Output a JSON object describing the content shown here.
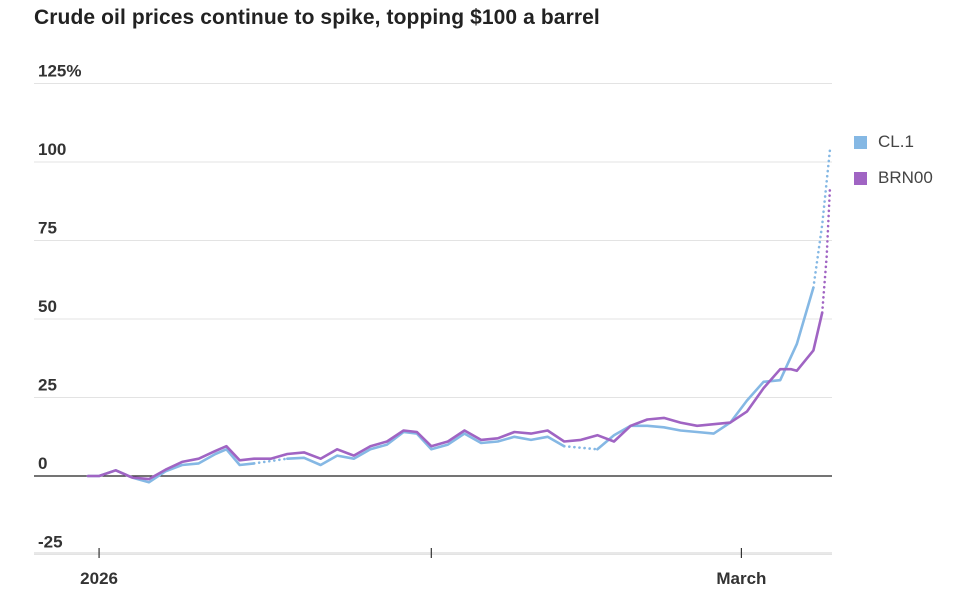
{
  "title": "Crude oil prices continue to spike, topping $100 a barrel",
  "chart_data": {
    "type": "line",
    "ylim": [
      -25,
      125
    ],
    "y_ticks": [
      -25,
      0,
      25,
      50,
      75,
      100,
      125
    ],
    "y_tick_labels": [
      "-25",
      "0",
      "25",
      "50",
      "75",
      "100",
      "125%"
    ],
    "x_ticks": [
      {
        "x": 0,
        "label": "2026"
      },
      {
        "x": 30,
        "label": ""
      },
      {
        "x": 58,
        "label": "March"
      }
    ],
    "xlim": [
      -1,
      66
    ],
    "grid": true,
    "legend": "right",
    "series": [
      {
        "name": "CL.1",
        "color": "#85b8e4",
        "solid": [
          [
            -1,
            0
          ],
          [
            0,
            0
          ],
          [
            1.5,
            1.8
          ],
          [
            3,
            -0.5
          ],
          [
            4.5,
            -2
          ],
          [
            6,
            1.5
          ],
          [
            7.5,
            3.5
          ],
          [
            9,
            4
          ],
          [
            10.5,
            7
          ],
          [
            11.5,
            8.5
          ],
          [
            12.7,
            3.5
          ],
          [
            14,
            4
          ]
        ],
        "dotted_gaps": [
          [
            [
              14,
              4
            ],
            [
              17,
              5.5
            ]
          ],
          [
            [
              42,
              9.5
            ],
            [
              45,
              8.5
            ]
          ]
        ],
        "solid2": [
          [
            17,
            5.5
          ],
          [
            18.5,
            5.8
          ],
          [
            20,
            3.5
          ],
          [
            21.5,
            6.5
          ],
          [
            23,
            5.5
          ],
          [
            24.5,
            8.5
          ],
          [
            26,
            10
          ],
          [
            27.5,
            14
          ],
          [
            28.7,
            13.5
          ],
          [
            30,
            8.5
          ],
          [
            31.5,
            10
          ],
          [
            33,
            13.5
          ],
          [
            34.5,
            10.5
          ],
          [
            36,
            11
          ],
          [
            37.5,
            12.5
          ],
          [
            39,
            11.5
          ],
          [
            40.5,
            12.5
          ],
          [
            42,
            9.5
          ]
        ],
        "solid3": [
          [
            45,
            8.5
          ],
          [
            46.5,
            13
          ],
          [
            48,
            16
          ],
          [
            49.5,
            16
          ],
          [
            51,
            15.5
          ],
          [
            52.5,
            14.5
          ],
          [
            54,
            14
          ],
          [
            55.5,
            13.5
          ],
          [
            57,
            17
          ],
          [
            58.5,
            24
          ],
          [
            60,
            30
          ],
          [
            61.5,
            30.5
          ],
          [
            63,
            42
          ],
          [
            64.5,
            60
          ]
        ],
        "dotted_tail": [
          [
            64.5,
            60
          ],
          [
            65.3,
            80
          ],
          [
            66,
            104
          ]
        ]
      },
      {
        "name": "BRN00",
        "color": "#a064c3",
        "solid": [
          [
            -1,
            0
          ],
          [
            0,
            0
          ],
          [
            1.5,
            1.8
          ],
          [
            3,
            -0.5
          ],
          [
            4.5,
            -1
          ],
          [
            6,
            2
          ],
          [
            7.5,
            4.5
          ],
          [
            9,
            5.5
          ],
          [
            10.5,
            8
          ],
          [
            11.5,
            9.5
          ],
          [
            12.7,
            5
          ],
          [
            14,
            5.5
          ],
          [
            15.5,
            5.5
          ],
          [
            17,
            7
          ],
          [
            18.5,
            7.5
          ],
          [
            20,
            5.5
          ],
          [
            21.5,
            8.5
          ],
          [
            23,
            6.5
          ],
          [
            24.5,
            9.5
          ],
          [
            26,
            11
          ],
          [
            27.5,
            14.5
          ],
          [
            28.7,
            14
          ],
          [
            30,
            9.5
          ],
          [
            31.5,
            11
          ],
          [
            33,
            14.5
          ],
          [
            34.5,
            11.5
          ],
          [
            36,
            12
          ],
          [
            37.5,
            14
          ],
          [
            39,
            13.5
          ],
          [
            40.5,
            14.5
          ],
          [
            42,
            11
          ],
          [
            43.5,
            11.5
          ],
          [
            45,
            13
          ],
          [
            46.5,
            11
          ],
          [
            48,
            16
          ],
          [
            49.5,
            18
          ],
          [
            51,
            18.5
          ],
          [
            52.5,
            17
          ],
          [
            54,
            16
          ],
          [
            55.5,
            16.5
          ],
          [
            57,
            17
          ],
          [
            58.5,
            20.5
          ],
          [
            60,
            28
          ],
          [
            61.5,
            34
          ],
          [
            62.5,
            34
          ],
          [
            63,
            33.5
          ],
          [
            64.5,
            40
          ],
          [
            65.3,
            52
          ]
        ],
        "dotted_tail": [
          [
            65.3,
            52
          ],
          [
            65.7,
            70
          ],
          [
            66,
            92
          ]
        ]
      }
    ]
  }
}
